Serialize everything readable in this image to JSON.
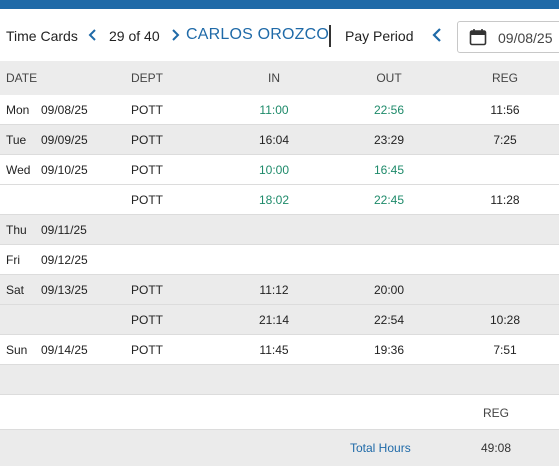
{
  "toolbar": {
    "title": "Time Cards",
    "counter": "29 of 40",
    "employee": "CARLOS OROZCO",
    "pay_period_label": "Pay Period",
    "date_value": "09/08/25"
  },
  "columns": {
    "date": "DATE",
    "dept": "DEPT",
    "in": "IN",
    "out": "OUT",
    "reg": "REG"
  },
  "rows": [
    {
      "day": "Mon",
      "date": "09/08/25",
      "dept": "POTT",
      "in": "11:00",
      "out": "22:56",
      "reg": "11:56",
      "highlight": true
    },
    {
      "day": "Tue",
      "date": "09/09/25",
      "dept": "POTT",
      "in": "16:04",
      "out": "23:29",
      "reg": "7:25",
      "highlight": false
    },
    {
      "day": "Wed",
      "date": "09/10/25",
      "dept": "POTT",
      "in": "10:00",
      "out": "16:45",
      "reg": "",
      "highlight": true
    },
    {
      "day": "",
      "date": "",
      "dept": "POTT",
      "in": "18:02",
      "out": "22:45",
      "reg": "11:28",
      "highlight": true
    },
    {
      "day": "Thu",
      "date": "09/11/25",
      "dept": "",
      "in": "",
      "out": "",
      "reg": "",
      "highlight": false
    },
    {
      "day": "Fri",
      "date": "09/12/25",
      "dept": "",
      "in": "",
      "out": "",
      "reg": "",
      "highlight": false
    },
    {
      "day": "Sat",
      "date": "09/13/25",
      "dept": "POTT",
      "in": "11:12",
      "out": "20:00",
      "reg": "",
      "highlight": false
    },
    {
      "day": "",
      "date": "",
      "dept": "POTT",
      "in": "21:14",
      "out": "22:54",
      "reg": "10:28",
      "highlight": false
    },
    {
      "day": "Sun",
      "date": "09/14/25",
      "dept": "POTT",
      "in": "11:45",
      "out": "19:36",
      "reg": "7:51",
      "highlight": false
    },
    {
      "day": "",
      "date": "",
      "dept": "",
      "in": "",
      "out": "",
      "reg": "",
      "highlight": false
    }
  ],
  "totals": {
    "reg_label": "REG",
    "label": "Total Hours",
    "value": "49:08"
  },
  "colors": {
    "accent": "#1f6aa8",
    "highlight_time": "#1e8a6a"
  }
}
